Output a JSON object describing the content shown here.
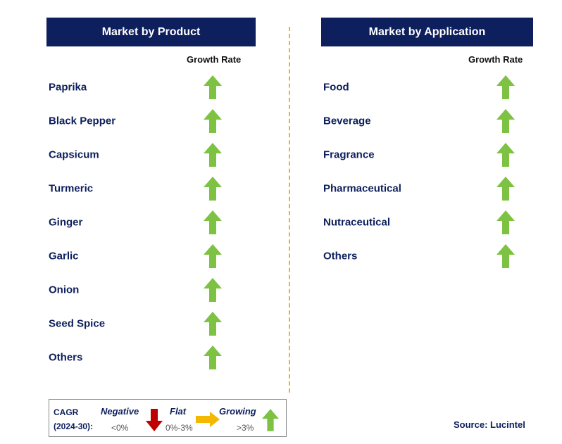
{
  "left_panel": {
    "title": "Market by Product",
    "growth_header": "Growth Rate",
    "items": [
      {
        "label": "Paprika",
        "trend": "growing"
      },
      {
        "label": "Black Pepper",
        "trend": "growing"
      },
      {
        "label": "Capsicum",
        "trend": "growing"
      },
      {
        "label": "Turmeric",
        "trend": "growing"
      },
      {
        "label": "Ginger",
        "trend": "growing"
      },
      {
        "label": "Garlic",
        "trend": "growing"
      },
      {
        "label": "Onion",
        "trend": "growing"
      },
      {
        "label": "Seed Spice",
        "trend": "growing"
      },
      {
        "label": "Others",
        "trend": "growing"
      }
    ]
  },
  "right_panel": {
    "title": "Market by Application",
    "growth_header": "Growth Rate",
    "items": [
      {
        "label": "Food",
        "trend": "growing"
      },
      {
        "label": "Beverage",
        "trend": "growing"
      },
      {
        "label": "Fragrance",
        "trend": "growing"
      },
      {
        "label": "Pharmaceutical",
        "trend": "growing"
      },
      {
        "label": "Nutraceutical",
        "trend": "growing"
      },
      {
        "label": "Others",
        "trend": "growing"
      }
    ]
  },
  "legend": {
    "cagr_label": "CAGR",
    "period_label": "(2024-30):",
    "negative": {
      "label": "Negative",
      "range": "<0%",
      "icon": "down-arrow-icon",
      "color": "#c00000"
    },
    "flat": {
      "label": "Flat",
      "range": "0%-3%",
      "icon": "right-arrow-icon",
      "color": "#f5b800"
    },
    "growing": {
      "label": "Growing",
      "range": ">3%",
      "icon": "up-arrow-icon",
      "color": "#7dc242"
    }
  },
  "source": "Source: Lucintel",
  "colors": {
    "header_bg": "#0d1f5c",
    "divider": "#f5b800",
    "arrow_up": "#7dc242"
  }
}
